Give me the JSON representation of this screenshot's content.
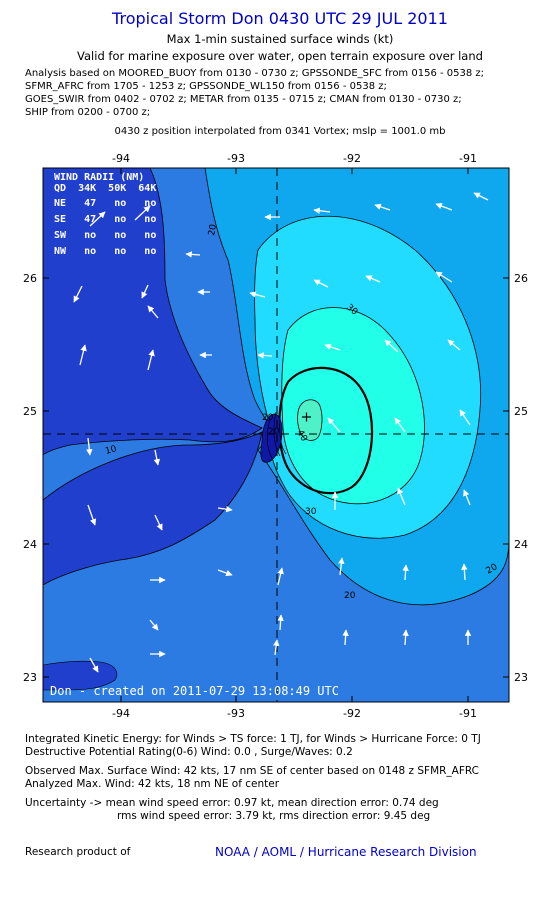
{
  "header": {
    "title": "Tropical Storm Don 0430 UTC 29 JUL 2011",
    "subtitle1": "Max 1-min sustained surface winds (kt)",
    "subtitle2": "Valid for marine exposure over water, open terrain exposure over land"
  },
  "analysis_lines": [
    "Analysis based on MOORED_BUOY from 0130 - 0730 z; GPSSONDE_SFC from 0156 - 0538 z;",
    "SFMR_AFRC from 1705 - 1253 z; GPSSONDE_WL150 from 0156 - 0538 z;",
    "GOES_SWIR from 0402 - 0702 z; METAR from 0135 - 0715 z; CMAN from 0130 - 0730 z;",
    "SHIP from 0200 - 0700 z;"
  ],
  "position_note": "0430 z position interpolated from 0341 Vortex; mslp = 1001.0 mb",
  "map": {
    "lon_ticks": [
      "-94",
      "-93",
      "-92",
      "-91"
    ],
    "lat_ticks": [
      "26",
      "25",
      "24",
      "23"
    ],
    "contour_labels": [
      "20",
      "30",
      "10",
      "20",
      "20",
      "40",
      "30",
      "20",
      "20"
    ],
    "credit": "Don - created on 2011-07-29 13:08:49 UTC",
    "colors": {
      "deep_blue": "#1f3fcc",
      "mid_blue": "#2c7be3",
      "light_blue": "#0fa8ee",
      "cyan": "#22dcff",
      "core": "#4ff2c8",
      "inner": "#1018a8"
    },
    "wind_radii": {
      "title": "WIND RADII (NM)",
      "header": "QD  34K  50K  64K",
      "rows": [
        "NE   47   no   no",
        "SE   47   no   no",
        "SW   no   no   no",
        "NW   no   no   no"
      ]
    }
  },
  "footer": {
    "ike": "Integrated Kinetic Energy:  for Winds > TS force: 1 TJ,  for Winds > Hurricane Force: 0 TJ",
    "dpr": "Destructive Potential Rating(0-6)   Wind: 0.0 , Surge/Waves: 0.2",
    "obs_max": "Observed Max. Surface Wind: 42 kts, 17 nm SE of center based on 0148 z SFMR_AFRC",
    "ana_max": "Analyzed Max. Wind: 42 kts, 18 nm NE of center",
    "unc1": "Uncertainty -> mean wind speed error: 0.97 kt,   mean direction error: 0.74 deg",
    "unc2": "rms wind speed error: 3.79 kt,   rms direction error: 9.45 deg",
    "research": "Research product of",
    "org": "NOAA / AOML / Hurricane Research Division"
  }
}
